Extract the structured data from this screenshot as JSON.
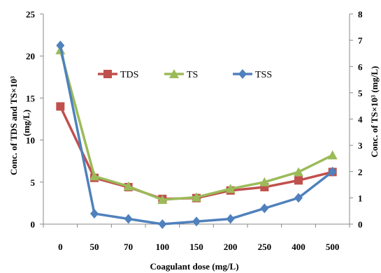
{
  "chart_data": {
    "type": "line",
    "categories": [
      "0",
      "50",
      "70",
      "100",
      "150",
      "200",
      "250",
      "400",
      "500"
    ],
    "xlabel": "Coagulant dose (mg/L)",
    "ylabel_left_line1": "Conc. of  TDS and TS×10³",
    "ylabel_left_line2": "(mg/L)",
    "ylabel_right": "Conc. of TS×10³  (mg/L)",
    "ylim_left": [
      0,
      25
    ],
    "ylim_right": [
      0,
      8
    ],
    "yticks_left": [
      0,
      5,
      10,
      15,
      20,
      25
    ],
    "yticks_right": [
      0,
      1,
      2,
      3,
      4,
      5,
      6,
      7,
      8
    ],
    "grid": false,
    "legend_position": "top-center",
    "series": [
      {
        "name": "TDS",
        "axis": "left",
        "color": "#C0504D",
        "marker": "square",
        "values": [
          14.0,
          5.5,
          4.4,
          3.0,
          3.1,
          4.0,
          4.4,
          5.2,
          6.2
        ]
      },
      {
        "name": "TS",
        "axis": "left",
        "color": "#9BBB59",
        "marker": "triangle",
        "values": [
          20.7,
          5.7,
          4.5,
          2.9,
          3.2,
          4.2,
          5.0,
          6.2,
          8.2
        ]
      },
      {
        "name": "TSS",
        "axis": "right",
        "color": "#4F81BD",
        "marker": "diamond",
        "values": [
          6.8,
          0.4,
          0.2,
          0.0,
          0.1,
          0.2,
          0.6,
          1.0,
          2.0
        ]
      }
    ]
  }
}
